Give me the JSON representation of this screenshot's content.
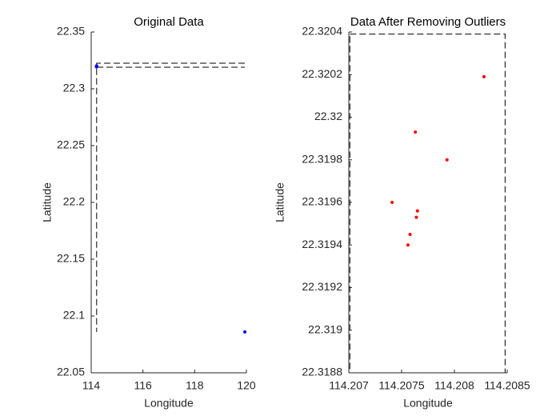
{
  "chart_data": [
    {
      "type": "scatter",
      "title": "Original Data",
      "xlabel": "Longitude",
      "ylabel": "Latitude",
      "xlim": [
        114,
        120
      ],
      "ylim": [
        22.05,
        22.35
      ],
      "xticks": [
        114,
        116,
        118,
        120
      ],
      "yticks": [
        22.05,
        22.1,
        22.15,
        22.2,
        22.25,
        22.3,
        22.35
      ],
      "series": [
        {
          "color": "#0000ff",
          "x": [
            114.20828,
            114.20763,
            114.20793,
            114.20741,
            114.20765,
            114.20764,
            114.20758,
            114.20756,
            119.94
          ],
          "values": [
            22.32019,
            22.31993,
            22.3198,
            22.3196,
            22.31956,
            22.31953,
            22.31945,
            22.3194,
            22.086
          ]
        }
      ],
      "outlines": [
        {
          "x": [
            119.94,
            114.21,
            114.21
          ],
          "y": [
            22.3225,
            22.3225,
            22.086
          ]
        },
        {
          "x": [
            114.22,
            119.94
          ],
          "y": [
            22.319,
            22.319
          ]
        }
      ]
    },
    {
      "type": "scatter",
      "title": "Data After Removing Outliers",
      "xlabel": "Longitude",
      "ylabel": "Latitude",
      "xlim": [
        114.207,
        114.2085
      ],
      "ylim": [
        22.3188,
        22.3204
      ],
      "xticks": [
        114.207,
        114.2075,
        114.208,
        114.2085
      ],
      "yticks": [
        22.3188,
        22.319,
        22.3192,
        22.3194,
        22.3196,
        22.3198,
        22.32,
        22.3202,
        22.3204
      ],
      "series": [
        {
          "color": "#ff0000",
          "x": [
            114.20828,
            114.20763,
            114.20793,
            114.20741,
            114.20765,
            114.20764,
            114.20758,
            114.20756
          ],
          "values": [
            22.32019,
            22.31993,
            22.3198,
            22.3196,
            22.31956,
            22.31953,
            22.31945,
            22.3194
          ]
        }
      ],
      "outlines": [
        {
          "x": [
            114.20701,
            114.20848,
            114.20848,
            114.20701,
            114.20701
          ],
          "y": [
            22.32039,
            22.32039,
            22.3188,
            22.3188,
            22.32039
          ]
        }
      ]
    }
  ]
}
